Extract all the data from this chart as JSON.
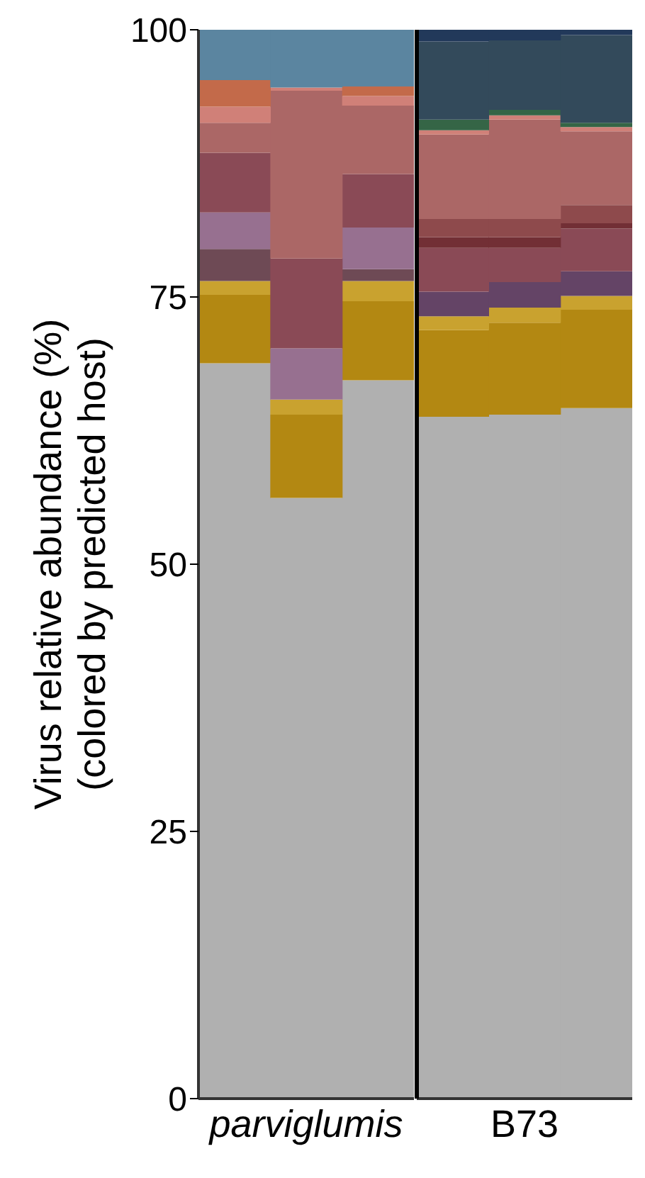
{
  "chart_data": [
    {
      "type": "bar",
      "stacked": true,
      "ylabel": "Virus relative abundance (%)\n(colored by predicted host)",
      "categories": [
        null,
        "parviglumis",
        null
      ],
      "ylim": [
        0,
        100
      ],
      "yticks": [
        0,
        25,
        50,
        75,
        100
      ],
      "series": [
        {
          "color": "#b0b0b0",
          "values": [
            68.8,
            56.2,
            67.2
          ]
        },
        {
          "color": "#b38812",
          "values": [
            6.4,
            7.8,
            7.4
          ]
        },
        {
          "color": "#c9a22f",
          "values": [
            1.3,
            1.4,
            1.9
          ]
        },
        {
          "color": "#6e4a55",
          "values": [
            3.0,
            null,
            1.1
          ]
        },
        {
          "color": "#977090",
          "values": [
            3.4,
            4.8,
            3.9
          ]
        },
        {
          "color": "#8a4a56",
          "values": [
            5.6,
            8.4,
            5.0
          ]
        },
        {
          "color": "#ab6766",
          "values": [
            2.8,
            15.7,
            6.4
          ]
        },
        {
          "color": "#d08078",
          "values": [
            1.5,
            0.3,
            0.9
          ]
        },
        {
          "color": "#c36a4a",
          "values": [
            2.5,
            null,
            0.9
          ]
        },
        {
          "color": "#5b85a0",
          "values": [
            4.7,
            5.5,
            5.3
          ]
        }
      ]
    },
    {
      "type": "bar",
      "stacked": true,
      "categories": [
        null,
        "B73",
        null
      ],
      "ylim": [
        0,
        100
      ],
      "yticks": [
        0,
        25,
        50,
        75,
        100
      ],
      "tick_labels": "x",
      "series": [
        {
          "color": "#b0b0b0",
          "values": [
            63.8,
            64.0,
            64.6
          ]
        },
        {
          "color": "#b38812",
          "values": [
            8.1,
            8.6,
            9.2
          ]
        },
        {
          "color": "#c9a22f",
          "values": [
            1.3,
            1.4,
            1.3
          ]
        },
        {
          "color": "#644466",
          "values": [
            2.3,
            2.4,
            2.3
          ]
        },
        {
          "color": "#8a4a56",
          "values": [
            4.1,
            3.2,
            4.0
          ]
        },
        {
          "color": "#722f35",
          "values": [
            1.0,
            1.0,
            0.5
          ]
        },
        {
          "color": "#8e4a4c",
          "values": [
            1.7,
            1.7,
            1.7
          ]
        },
        {
          "color": "#ab6766",
          "values": [
            7.9,
            9.3,
            6.9
          ]
        },
        {
          "color": "#d08078",
          "values": [
            0.4,
            0.4,
            0.4
          ]
        },
        {
          "color": "#356546",
          "values": [
            1.0,
            0.5,
            0.4
          ]
        },
        {
          "color": "#334a5b",
          "values": [
            7.3,
            6.5,
            8.2
          ]
        },
        {
          "color": "#22395a",
          "values": [
            1.1,
            1.0,
            0.5
          ]
        }
      ]
    }
  ]
}
